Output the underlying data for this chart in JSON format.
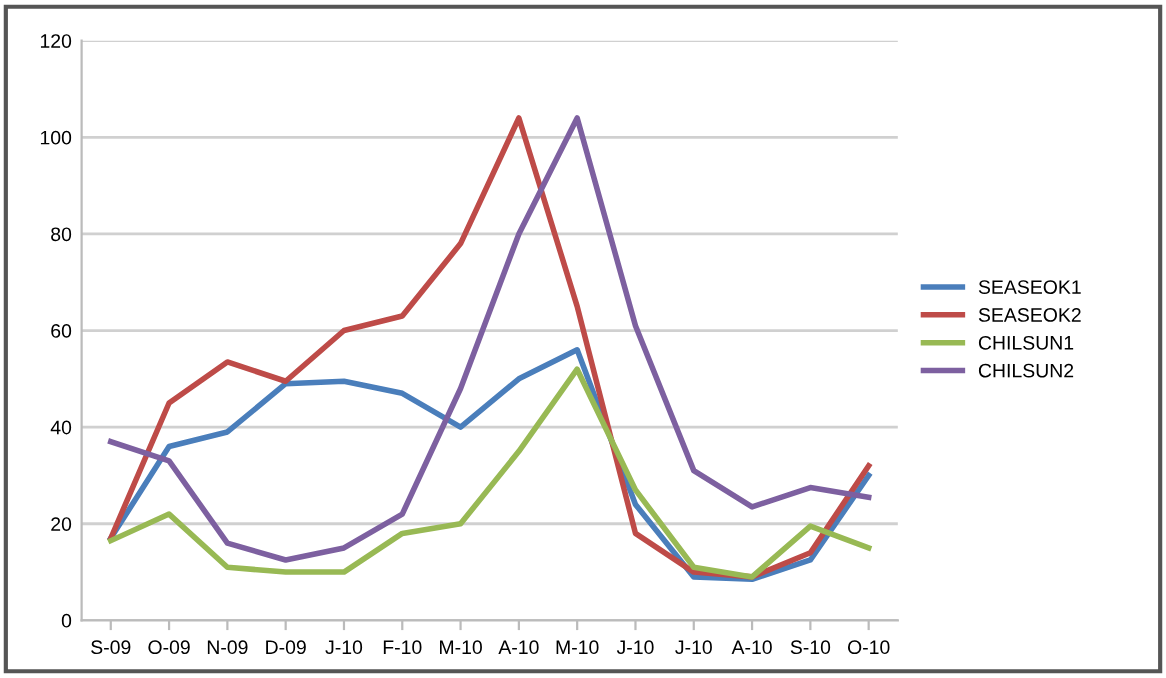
{
  "chart_data": {
    "type": "line",
    "categories": [
      "S-09",
      "O-09",
      "N-09",
      "D-09",
      "J-10",
      "F-10",
      "M-10",
      "A-10",
      "M-10",
      "J-10",
      "J-10",
      "A-10",
      "S-10",
      "O-10"
    ],
    "series": [
      {
        "name": "SEASEOK1",
        "color": "#4a7ebb",
        "values": [
          17,
          36,
          39,
          49,
          49.5,
          47,
          40,
          50,
          56,
          24,
          9,
          8.5,
          12.5,
          30
        ]
      },
      {
        "name": "SEASEOK2",
        "color": "#be4b48",
        "values": [
          17,
          45,
          53.5,
          49.5,
          60,
          63,
          78,
          104,
          65,
          18,
          10,
          9,
          14,
          32
        ]
      },
      {
        "name": "CHILSUN1",
        "color": "#98b954",
        "values": [
          16.5,
          22,
          11,
          10,
          10,
          18,
          20,
          35,
          52,
          27,
          11,
          9,
          19.5,
          15
        ]
      },
      {
        "name": "CHILSUN2",
        "color": "#7d60a0",
        "values": [
          37,
          33,
          16,
          12.5,
          15,
          22,
          48,
          80,
          104,
          61,
          31,
          23.5,
          27.5,
          25.5
        ]
      }
    ],
    "ylim": [
      0,
      120
    ],
    "yticks": [
      0,
      20,
      40,
      60,
      80,
      100,
      120
    ],
    "grid": "y",
    "legend": "right",
    "marker": "none",
    "line_style": "solid"
  }
}
